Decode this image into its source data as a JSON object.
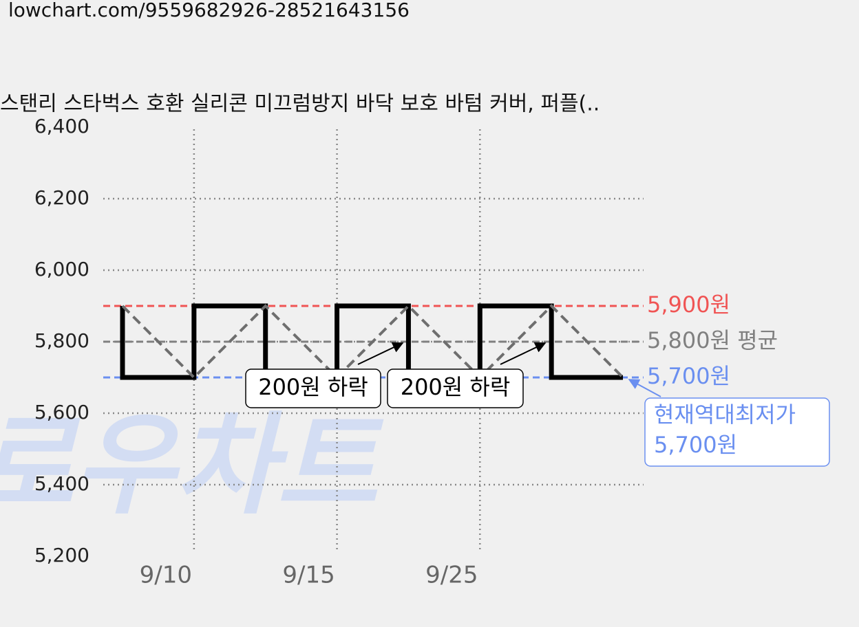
{
  "url": "lowchart.com/9559682926-28521643156",
  "chart_data": {
    "type": "line",
    "title": "스탠리 스타벅스 호환 실리콘 미끄럼방지 바닥 보호 바텀 커버, 퍼플(..",
    "watermark": "로우차트",
    "categories": [
      null,
      "9/10",
      null,
      "9/15",
      null,
      "9/25",
      null,
      null
    ],
    "series": [
      {
        "values": [
          5900,
          5700,
          5900,
          5700,
          5900,
          5700,
          5900,
          5700
        ],
        "color": "#000000",
        "style": "step"
      },
      {
        "values": [
          5900,
          5700,
          5900,
          5700,
          5900,
          5700,
          5900,
          5700
        ],
        "color": "#6e6e6e",
        "style": "dashed"
      }
    ],
    "ylim": [
      5200,
      6400
    ],
    "yticks": [
      {
        "value": 5200,
        "label": "5,200"
      },
      {
        "value": 5400,
        "label": "5,400"
      },
      {
        "value": 5600,
        "label": "5,600"
      },
      {
        "value": 5800,
        "label": "5,800"
      },
      {
        "value": 6000,
        "label": "6,000"
      },
      {
        "value": 6200,
        "label": "6,200"
      },
      {
        "value": 6400,
        "label": "6,400"
      }
    ],
    "grid": true,
    "reference_lines": [
      {
        "value": 5900,
        "label": "5,900원",
        "color": "#f05454"
      },
      {
        "value": 5800,
        "label": "5,800원 평균",
        "color": "#808080"
      },
      {
        "value": 5700,
        "label": "5,700원",
        "color": "#6a8ff0"
      }
    ],
    "annotations": [
      "200원 하락",
      "200원 하락"
    ],
    "low_note": [
      "현재역대최저가",
      "5,700원"
    ]
  }
}
